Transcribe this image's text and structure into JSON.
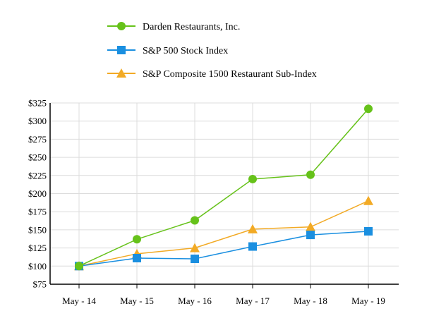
{
  "chart_data": {
    "type": "line",
    "categories": [
      "May - 14",
      "May - 15",
      "May - 16",
      "May - 17",
      "May - 18",
      "May - 19"
    ],
    "series": [
      {
        "name": "Darden Restaurants, Inc.",
        "values": [
          100,
          137,
          163,
          220,
          226,
          317
        ],
        "color": "#66c21a",
        "marker": "circle"
      },
      {
        "name": "S&P 500 Stock Index",
        "values": [
          100,
          111,
          110,
          127,
          143,
          148
        ],
        "color": "#1a8fe0",
        "marker": "square"
      },
      {
        "name": "S&P Composite 1500 Restaurant Sub-Index",
        "values": [
          100,
          117,
          125,
          151,
          154,
          190
        ],
        "color": "#f2aa25",
        "marker": "triangle"
      }
    ],
    "y_ticks": [
      "$75",
      "$100",
      "$125",
      "$150",
      "$175",
      "$200",
      "$225",
      "$250",
      "$275",
      "$300",
      "$325"
    ],
    "ylim": [
      75,
      325
    ],
    "grid": true,
    "legend_position": "top-left"
  }
}
